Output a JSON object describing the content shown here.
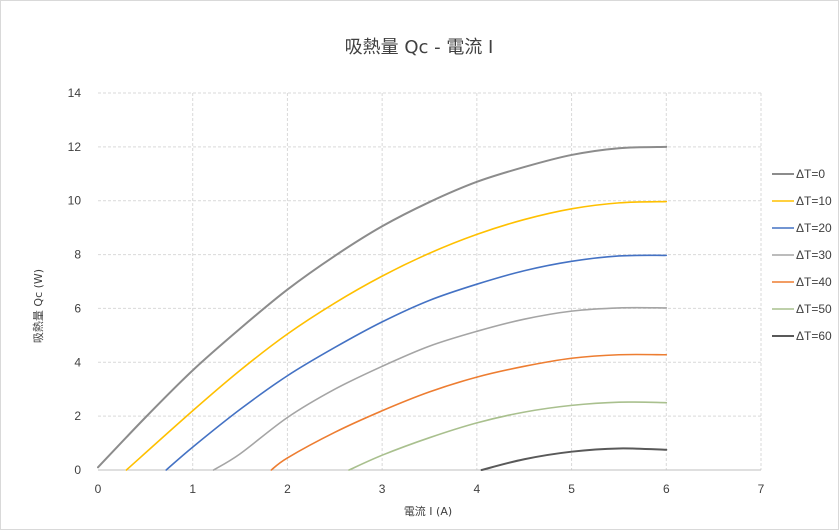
{
  "chart_data": {
    "type": "line",
    "title": "吸熱量 Qc - 電流 I",
    "xlabel": "電流 I (A)",
    "ylabel": "吸熱量 Qc (W)",
    "xlim": [
      0,
      7
    ],
    "ylim": [
      0,
      14
    ],
    "x_ticks": [
      "0",
      "1",
      "2",
      "3",
      "4",
      "5",
      "6",
      "7"
    ],
    "y_ticks": [
      "0",
      "2",
      "4",
      "6",
      "8",
      "10",
      "12",
      "14"
    ],
    "grid": true,
    "legend_position": "right",
    "x": [
      0,
      0.5,
      1,
      1.5,
      2,
      2.5,
      3,
      3.5,
      4,
      4.5,
      5,
      5.5,
      6
    ],
    "series": [
      {
        "name": "ΔT=0",
        "color": "#8c8c8c",
        "width": 2,
        "values": [
          0.1,
          1.95,
          3.7,
          5.25,
          6.7,
          7.95,
          9.05,
          9.95,
          10.7,
          11.25,
          11.7,
          11.95,
          12.0
        ]
      },
      {
        "name": "ΔT=10",
        "color": "#ffc000",
        "width": 1.6,
        "values": [
          null,
          null,
          2.2,
          3.7,
          5.05,
          6.2,
          7.2,
          8.05,
          8.75,
          9.3,
          9.7,
          9.92,
          9.97
        ]
      },
      {
        "name": "ΔT=20",
        "color": "#4472c4",
        "width": 1.6,
        "values": [
          null,
          null,
          0.85,
          2.25,
          3.5,
          4.55,
          5.5,
          6.3,
          6.9,
          7.4,
          7.75,
          7.95,
          7.97
        ]
      },
      {
        "name": "ΔT=30",
        "color": "#a5a5a5",
        "width": 1.6,
        "values": [
          null,
          null,
          null,
          0.6,
          1.95,
          3.0,
          3.85,
          4.6,
          5.15,
          5.6,
          5.9,
          6.02,
          6.02
        ]
      },
      {
        "name": "ΔT=40",
        "color": "#ed7d31",
        "width": 1.6,
        "values": [
          null,
          null,
          null,
          null,
          0.45,
          1.4,
          2.2,
          2.9,
          3.45,
          3.85,
          4.15,
          4.28,
          4.28
        ]
      },
      {
        "name": "ΔT=50",
        "color": "#a9c08e",
        "width": 1.6,
        "values": [
          null,
          null,
          null,
          null,
          null,
          null,
          0.55,
          1.2,
          1.75,
          2.15,
          2.4,
          2.52,
          2.5
        ]
      },
      {
        "name": "ΔT=60",
        "color": "#595959",
        "width": 2,
        "values": [
          null,
          null,
          null,
          null,
          null,
          null,
          null,
          null,
          0.0,
          0.4,
          0.68,
          0.8,
          0.75
        ]
      }
    ],
    "zero_crossings": {
      "ΔT=10": 0.3,
      "ΔT=20": 0.72,
      "ΔT=30": 1.22,
      "ΔT=40": 1.83,
      "ΔT=50": 2.65,
      "ΔT=60": 4.05
    }
  }
}
